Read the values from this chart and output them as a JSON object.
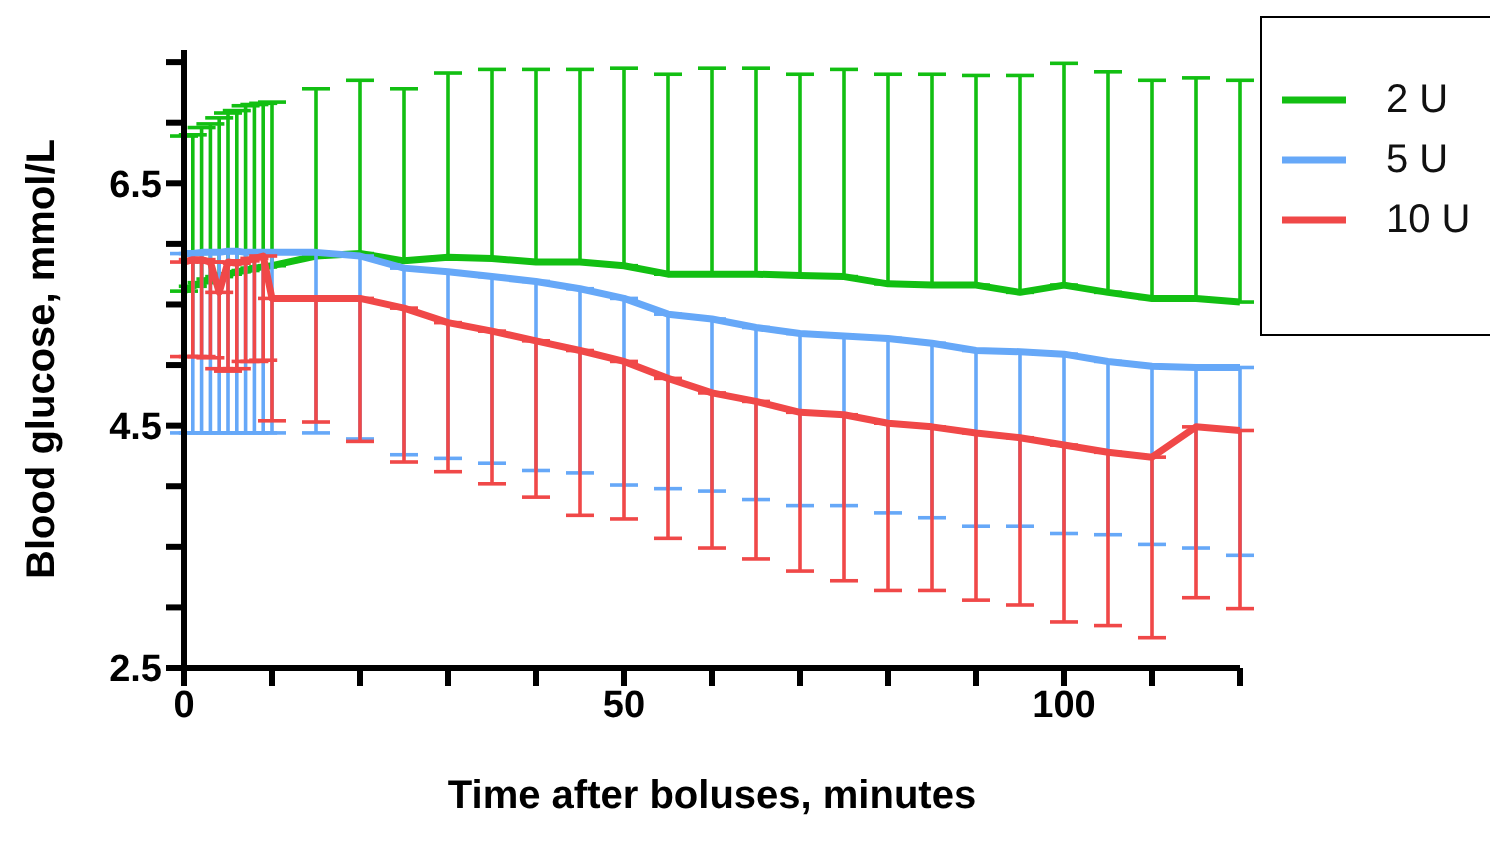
{
  "chart_data": {
    "type": "line",
    "xlabel": "Time after boluses, minutes",
    "ylabel": "Blood glucose, mmol/L",
    "x": [
      0,
      1,
      2,
      3,
      4,
      5,
      6,
      7,
      8,
      9,
      10,
      15,
      20,
      25,
      30,
      35,
      40,
      45,
      50,
      55,
      60,
      65,
      70,
      75,
      80,
      85,
      90,
      95,
      100,
      105,
      110,
      115,
      120
    ],
    "xlim": [
      0,
      120
    ],
    "xticks": [
      0,
      {
        "value": 10,
        "label": null
      },
      {
        "value": 20,
        "label": null
      },
      {
        "value": 30,
        "label": null
      },
      {
        "value": 40,
        "label": null
      },
      50,
      {
        "value": 60,
        "label": null
      },
      {
        "value": 70,
        "label": null
      },
      {
        "value": 80,
        "label": null
      },
      {
        "value": 90,
        "label": null
      },
      100,
      {
        "value": 110,
        "label": null
      },
      {
        "value": 120,
        "label": null
      }
    ],
    "ylim": [
      2.5,
      7.6
    ],
    "yticks": [
      2.5,
      {
        "value": 3,
        "label": null
      },
      {
        "value": 3.5,
        "label": null
      },
      {
        "value": 4,
        "label": null
      },
      4.5,
      {
        "value": 5,
        "label": null
      },
      {
        "value": 5.5,
        "label": null
      },
      {
        "value": 6,
        "label": null
      },
      6.5,
      {
        "value": 7,
        "label": null
      },
      {
        "value": 7.5,
        "label": null
      }
    ],
    "legend": "top right",
    "grid": false,
    "marker": "none",
    "line_style": "solid",
    "series": [
      {
        "name": "2 U",
        "color": "#12bf12",
        "values": [
          5.61,
          5.65,
          5.68,
          5.71,
          5.73,
          5.75,
          5.77,
          5.78,
          5.8,
          5.81,
          5.82,
          5.9,
          5.92,
          5.86,
          5.89,
          5.88,
          5.85,
          5.85,
          5.82,
          5.75,
          5.75,
          5.75,
          5.74,
          5.73,
          5.67,
          5.66,
          5.66,
          5.6,
          5.66,
          5.6,
          5.55,
          5.55,
          5.52
        ],
        "errors": [
          [
            5.61,
            6.89
          ],
          [
            5.65,
            6.9
          ],
          [
            5.68,
            6.96
          ],
          [
            5.71,
            6.99
          ],
          [
            5.73,
            7.04
          ],
          [
            5.75,
            7.08
          ],
          [
            5.77,
            7.1
          ],
          [
            5.78,
            7.14
          ],
          [
            5.8,
            7.15
          ],
          [
            5.81,
            7.16
          ],
          [
            5.82,
            7.17
          ],
          [
            5.9,
            7.28
          ],
          [
            5.92,
            7.35
          ],
          [
            5.86,
            7.28
          ],
          [
            5.89,
            7.41
          ],
          [
            5.88,
            7.44
          ],
          [
            5.85,
            7.44
          ],
          [
            5.85,
            7.44
          ],
          [
            5.82,
            7.45
          ],
          [
            5.75,
            7.4
          ],
          [
            5.75,
            7.45
          ],
          [
            5.75,
            7.45
          ],
          [
            5.74,
            7.4
          ],
          [
            5.73,
            7.44
          ],
          [
            5.67,
            7.4
          ],
          [
            5.66,
            7.4
          ],
          [
            5.66,
            7.39
          ],
          [
            5.6,
            7.39
          ],
          [
            5.66,
            7.49
          ],
          [
            5.6,
            7.42
          ],
          [
            5.55,
            7.35
          ],
          [
            5.55,
            7.37
          ],
          [
            5.52,
            7.35
          ]
        ]
      },
      {
        "name": "5 U",
        "color": "#66a8f8",
        "values": [
          5.92,
          5.92,
          5.93,
          5.93,
          5.93,
          5.94,
          5.94,
          5.93,
          5.93,
          5.93,
          5.93,
          5.93,
          5.9,
          5.8,
          5.77,
          5.73,
          5.69,
          5.63,
          5.55,
          5.42,
          5.38,
          5.31,
          5.26,
          5.24,
          5.22,
          5.18,
          5.12,
          5.11,
          5.09,
          5.03,
          4.99,
          4.98,
          4.98
        ],
        "errors": [
          [
            4.44,
            5.92
          ],
          [
            4.44,
            5.92
          ],
          [
            4.44,
            5.93
          ],
          [
            4.44,
            5.93
          ],
          [
            4.44,
            5.93
          ],
          [
            4.44,
            5.94
          ],
          [
            4.44,
            5.94
          ],
          [
            4.44,
            5.93
          ],
          [
            4.44,
            5.93
          ],
          [
            4.44,
            5.93
          ],
          [
            4.44,
            5.93
          ],
          [
            4.44,
            5.93
          ],
          [
            4.39,
            5.9
          ],
          [
            4.26,
            5.8
          ],
          [
            4.23,
            5.77
          ],
          [
            4.19,
            5.73
          ],
          [
            4.13,
            5.69
          ],
          [
            4.11,
            5.63
          ],
          [
            4.01,
            5.55
          ],
          [
            3.98,
            5.42
          ],
          [
            3.96,
            5.38
          ],
          [
            3.89,
            5.31
          ],
          [
            3.84,
            5.26
          ],
          [
            3.84,
            5.24
          ],
          [
            3.78,
            5.22
          ],
          [
            3.74,
            5.18
          ],
          [
            3.67,
            5.12
          ],
          [
            3.67,
            5.11
          ],
          [
            3.61,
            5.09
          ],
          [
            3.6,
            5.03
          ],
          [
            3.52,
            4.99
          ],
          [
            3.49,
            4.98
          ],
          [
            3.43,
            4.98
          ]
        ]
      },
      {
        "name": "10 U",
        "color": "#f04848",
        "values": [
          5.85,
          5.87,
          5.87,
          5.85,
          5.6,
          5.85,
          5.84,
          5.86,
          5.88,
          5.9,
          5.55,
          5.55,
          5.55,
          5.47,
          5.35,
          5.28,
          5.2,
          5.12,
          5.03,
          4.89,
          4.77,
          4.7,
          4.61,
          4.59,
          4.52,
          4.49,
          4.44,
          4.4,
          4.34,
          4.28,
          4.24,
          4.49,
          4.46
        ],
        "errors": [
          [
            5.07,
            5.85
          ],
          [
            5.07,
            5.87
          ],
          [
            5.07,
            5.87
          ],
          [
            5.06,
            5.85
          ],
          [
            4.97,
            5.6
          ],
          [
            4.95,
            5.85
          ],
          [
            4.97,
            5.84
          ],
          [
            5.03,
            5.86
          ],
          [
            5.03,
            5.88
          ],
          [
            5.04,
            5.9
          ],
          [
            4.54,
            5.55
          ],
          [
            4.53,
            5.55
          ],
          [
            4.37,
            5.55
          ],
          [
            4.2,
            5.47
          ],
          [
            4.12,
            5.35
          ],
          [
            4.02,
            5.28
          ],
          [
            3.91,
            5.2
          ],
          [
            3.76,
            5.12
          ],
          [
            3.73,
            5.03
          ],
          [
            3.57,
            4.89
          ],
          [
            3.49,
            4.77
          ],
          [
            3.4,
            4.7
          ],
          [
            3.3,
            4.61
          ],
          [
            3.22,
            4.59
          ],
          [
            3.14,
            4.52
          ],
          [
            3.14,
            4.49
          ],
          [
            3.06,
            4.44
          ],
          [
            3.02,
            4.4
          ],
          [
            2.88,
            4.34
          ],
          [
            2.85,
            4.28
          ],
          [
            2.75,
            4.24
          ],
          [
            3.08,
            4.49
          ],
          [
            2.99,
            4.46
          ]
        ]
      }
    ]
  }
}
